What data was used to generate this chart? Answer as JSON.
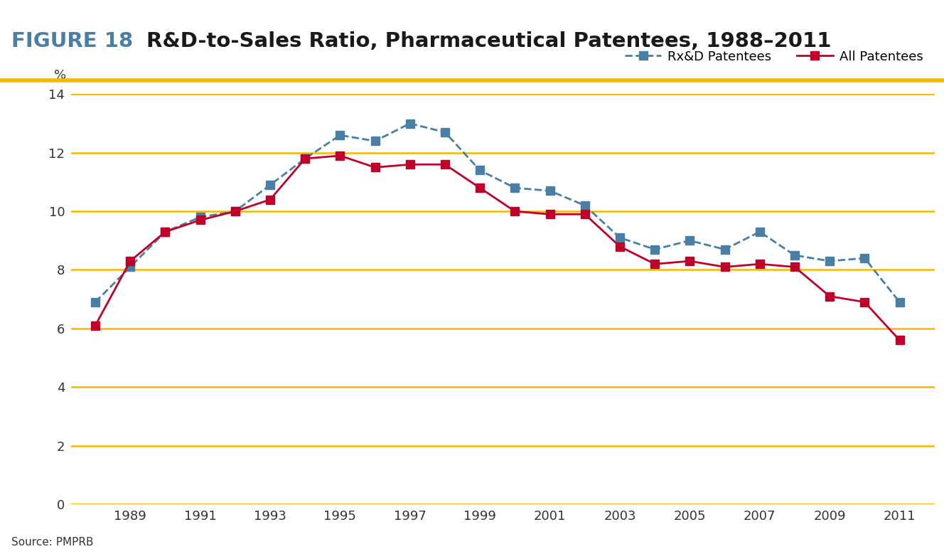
{
  "title_fig": "FIGURE 18",
  "title_main": "R&D-to-Sales Ratio, Pharmaceutical Patentees, 1988–2011",
  "ylabel": "%",
  "source": "Source: PMPRB",
  "years": [
    1988,
    1989,
    1990,
    1991,
    1992,
    1993,
    1994,
    1995,
    1996,
    1997,
    1998,
    1999,
    2000,
    2001,
    2002,
    2003,
    2004,
    2005,
    2006,
    2007,
    2008,
    2009,
    2010,
    2011
  ],
  "rxd_patentees": [
    6.9,
    8.1,
    9.3,
    9.8,
    10.0,
    10.9,
    11.8,
    12.6,
    12.4,
    13.0,
    12.7,
    11.4,
    10.8,
    10.7,
    10.2,
    9.1,
    8.7,
    9.0,
    8.7,
    9.3,
    8.5,
    8.3,
    8.4,
    6.9
  ],
  "all_patentees": [
    6.1,
    8.3,
    9.3,
    9.7,
    10.0,
    10.4,
    11.8,
    11.9,
    11.5,
    11.6,
    11.6,
    10.8,
    10.0,
    9.9,
    9.9,
    8.8,
    8.2,
    8.3,
    8.1,
    8.2,
    8.1,
    7.1,
    6.9,
    5.6
  ],
  "rxd_color": "#4a7fa5",
  "all_color": "#c0002a",
  "grid_color": "#f5b800",
  "title_fig_color": "#4a7fa5",
  "title_main_color": "#1a1a1a",
  "ylim": [
    0,
    14
  ],
  "yticks": [
    0,
    2,
    4,
    6,
    8,
    10,
    12,
    14
  ],
  "background_color": "#ffffff",
  "marker_size": 9,
  "linewidth": 2.0,
  "header_line_color": "#f5b800"
}
